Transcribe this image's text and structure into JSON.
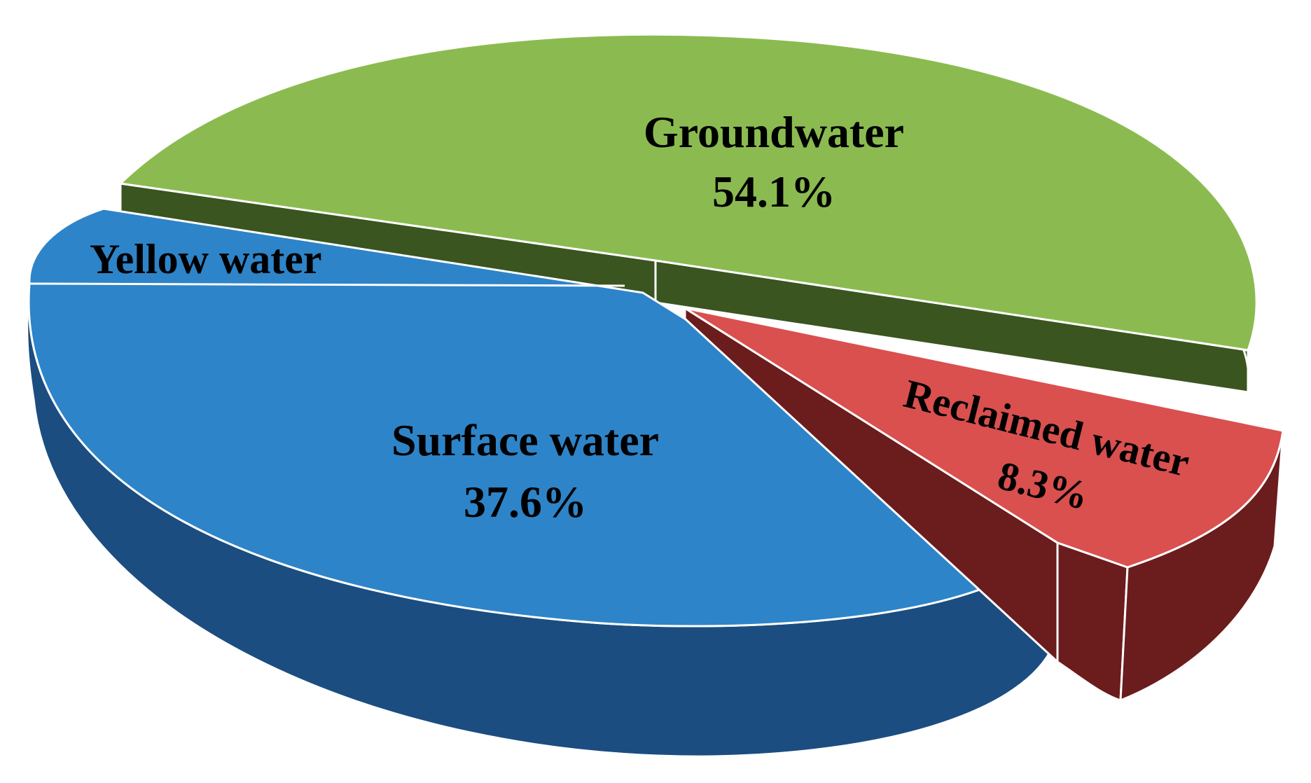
{
  "chart_data": {
    "type": "pie",
    "style": "3d-exploded",
    "categories": [
      "Groundwater",
      "Surface water",
      "Reclaimed water"
    ],
    "values": [
      54.1,
      37.6,
      8.3
    ],
    "value_labels": [
      "54.1%",
      "37.6%",
      "8.3%"
    ],
    "unit": "%",
    "colors": [
      "#8bbb50",
      "#2e84c8",
      "#d9504f"
    ],
    "side_colors": [
      "#3a5520",
      "#1b4d80",
      "#6b1c1c"
    ],
    "annotations": [
      {
        "text": "Yellow water",
        "part_of": "Surface water"
      }
    ],
    "legend": "none"
  }
}
